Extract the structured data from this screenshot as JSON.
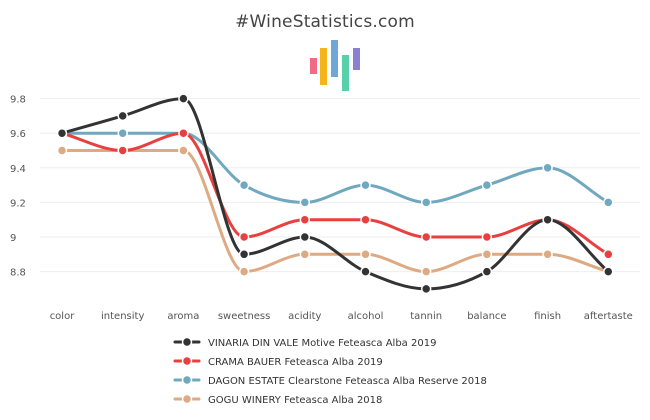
{
  "chart_data": {
    "type": "line",
    "title": "#WineStatistics.com",
    "categories": [
      "color",
      "intensity",
      "aroma",
      "sweetness",
      "acidity",
      "alcohol",
      "tannin",
      "balance",
      "finish",
      "aftertaste"
    ],
    "ylim": [
      8.6,
      9.9
    ],
    "yticks": [
      8.8,
      9,
      9.2,
      9.4,
      9.6,
      9.8
    ],
    "ytick_labels": [
      "8.8",
      "9",
      "9.2",
      "9.4",
      "9.6",
      "9.8"
    ],
    "xlabel": "",
    "ylabel": "",
    "legend_position": "bottom",
    "series": [
      {
        "name": "VINARIA DIN VALE Motive Feteasca Alba 2019",
        "color": "#333333",
        "values": [
          9.6,
          9.7,
          9.8,
          8.9,
          9.0,
          8.8,
          8.7,
          8.8,
          9.1,
          8.8
        ]
      },
      {
        "name": "CRAMA BAUER Feteasca Alba 2019",
        "color": "#e8403f",
        "values": [
          9.6,
          9.5,
          9.6,
          9.0,
          9.1,
          9.1,
          9.0,
          9.0,
          9.1,
          8.9
        ]
      },
      {
        "name": "DAGON ESTATE Clearstone Feteasca Alba Reserve 2018",
        "color": "#6fa8bf",
        "values": [
          9.6,
          9.6,
          9.6,
          9.3,
          9.2,
          9.3,
          9.2,
          9.3,
          9.4,
          9.2
        ]
      },
      {
        "name": "GOGU WINERY Feteasca Alba 2018",
        "color": "#ddaa84",
        "values": [
          9.5,
          9.5,
          9.5,
          8.8,
          8.9,
          8.9,
          8.8,
          8.9,
          8.9,
          8.8
        ]
      }
    ]
  },
  "logo": {
    "icon": "wine-statistics-bars-icon",
    "colors": [
      "#f26b85",
      "#f4b41a",
      "#6fa8d6",
      "#58d0a8",
      "#8a7fd0"
    ]
  }
}
